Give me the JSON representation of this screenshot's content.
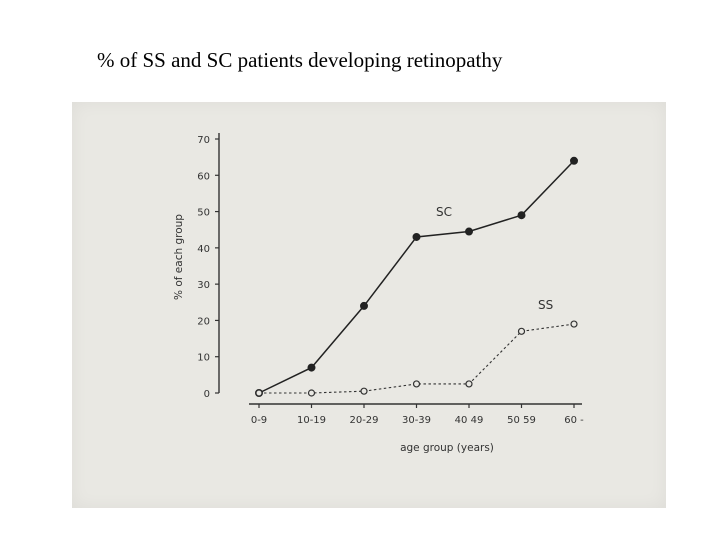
{
  "slide": {
    "title": "% of  SS and SC patients developing retinopathy"
  },
  "chart_data": {
    "type": "line",
    "xlabel": "age   group   (years)",
    "ylabel": "% of each group",
    "ylim": [
      0,
      70
    ],
    "yticks": [
      "0",
      "10",
      "20",
      "30",
      "40",
      "50",
      "60",
      "70"
    ],
    "categories": [
      "0-9",
      "10-19",
      "20-29",
      "30-39",
      "40 49",
      "50 59",
      "60 -"
    ],
    "grid": false,
    "series": [
      {
        "name": "SC",
        "values": [
          0,
          7,
          24,
          43,
          44.5,
          49,
          64
        ],
        "marker": "filled",
        "line": "solid",
        "color": "#222222"
      },
      {
        "name": "SS",
        "values": [
          0,
          0,
          0.5,
          2.5,
          2.5,
          17,
          19
        ],
        "marker": "open",
        "line": "dashed",
        "color": "#333333"
      }
    ]
  }
}
